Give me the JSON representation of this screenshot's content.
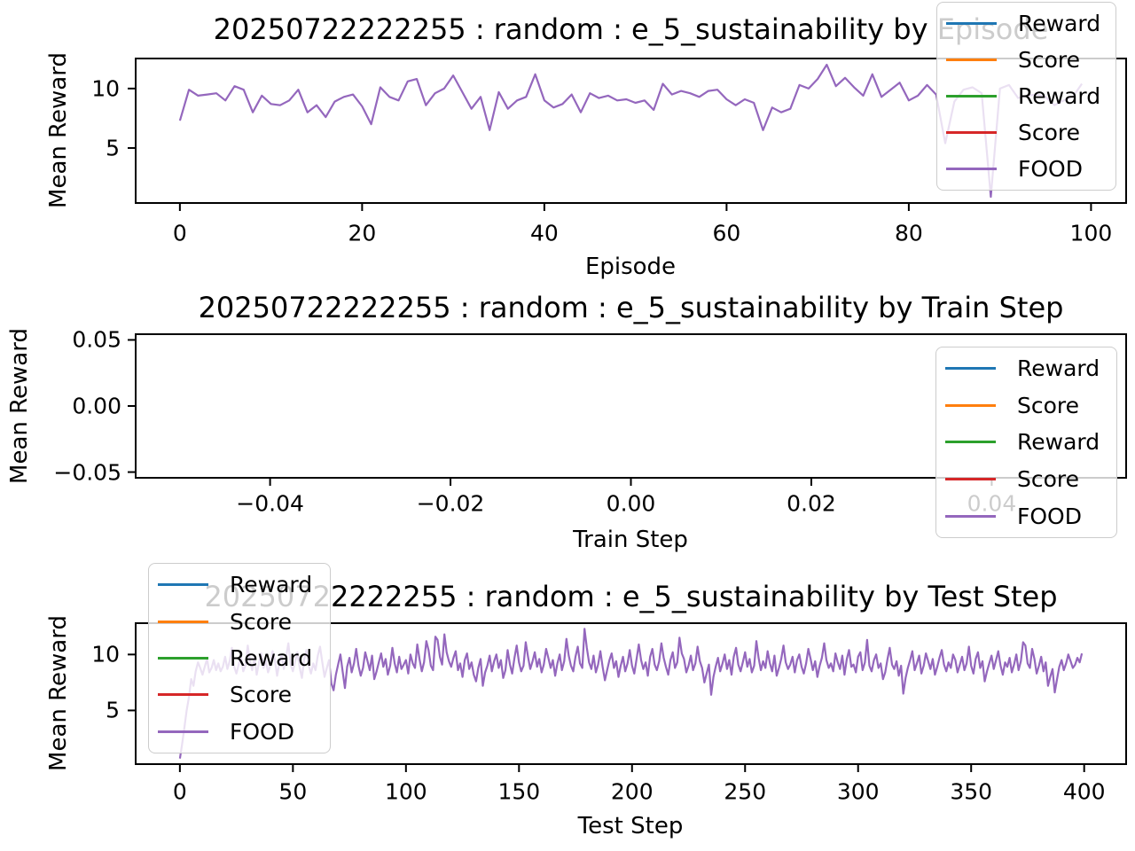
{
  "figure": {
    "background": "#ffffff"
  },
  "chart_data": [
    {
      "type": "line",
      "title": "20250722222255 : random : e_5_sustainability by Episode",
      "xlabel": "Episode",
      "ylabel": "Mean Reward",
      "xlim": [
        -4.95,
        103.95
      ],
      "ylim": [
        0.3,
        12.6
      ],
      "xticks": [
        0,
        20,
        40,
        60,
        80,
        100
      ],
      "xtick_labels": [
        "0",
        "20",
        "40",
        "60",
        "80",
        "100"
      ],
      "yticks": [
        10,
        5
      ],
      "ytick_labels": [
        "10",
        "5"
      ],
      "grid": false,
      "legend": {
        "position": "upper-right",
        "entries": [
          {
            "label": "Reward",
            "color": "#1f77b4"
          },
          {
            "label": "Score",
            "color": "#ff7f0e"
          },
          {
            "label": "Reward",
            "color": "#2ca02c"
          },
          {
            "label": "Score",
            "color": "#d62728"
          },
          {
            "label": "FOOD",
            "color": "#9467bd"
          }
        ]
      },
      "series": [
        {
          "name": "FOOD",
          "color": "#9467bd",
          "x_start": 0,
          "x_step": 1,
          "values": [
            7.3,
            9.9,
            9.4,
            9.5,
            9.6,
            9.0,
            10.2,
            9.9,
            8.0,
            9.4,
            8.7,
            8.6,
            9.0,
            9.9,
            8.0,
            8.6,
            7.6,
            8.9,
            9.3,
            9.5,
            8.5,
            7.0,
            10.1,
            9.3,
            9.0,
            10.6,
            10.8,
            8.6,
            9.6,
            10.0,
            11.1,
            9.7,
            8.3,
            9.3,
            6.5,
            9.7,
            8.3,
            9.0,
            9.3,
            11.2,
            9.0,
            8.4,
            8.7,
            9.5,
            8.0,
            9.6,
            9.2,
            9.4,
            9.0,
            9.1,
            8.8,
            9.0,
            8.2,
            10.4,
            9.5,
            9.8,
            9.6,
            9.3,
            9.8,
            9.9,
            9.1,
            8.6,
            9.1,
            8.8,
            6.5,
            8.4,
            8.0,
            8.3,
            10.3,
            10.0,
            10.8,
            12.0,
            10.2,
            10.9,
            10.1,
            9.4,
            11.2,
            9.3,
            9.9,
            10.5,
            9.0,
            9.4,
            10.3,
            9.5,
            5.4,
            8.9,
            9.9,
            10.1,
            9.6,
            0.9,
            10.0,
            10.3,
            9.2,
            9.4,
            9.5,
            9.3,
            8.6,
            9.0,
            9.3,
            10.4
          ]
        }
      ]
    },
    {
      "type": "line",
      "title": "20250722222255 : random : e_5_sustainability by Train Step",
      "xlabel": "Train Step",
      "ylabel": "Mean Reward",
      "xlim": [
        -0.055,
        0.055
      ],
      "ylim": [
        -0.055,
        0.055
      ],
      "xticks": [
        -0.04,
        -0.02,
        0.0,
        0.02,
        0.04
      ],
      "xtick_labels": [
        "−0.04",
        "−0.02",
        "0.00",
        "0.02",
        "0.04"
      ],
      "yticks": [
        0.05,
        0.0,
        -0.05
      ],
      "ytick_labels": [
        "0.05",
        "0.00",
        "−0.05"
      ],
      "grid": false,
      "legend": {
        "position": "center-right",
        "entries": [
          {
            "label": "Reward",
            "color": "#1f77b4"
          },
          {
            "label": "Score",
            "color": "#ff7f0e"
          },
          {
            "label": "Reward",
            "color": "#2ca02c"
          },
          {
            "label": "Score",
            "color": "#d62728"
          },
          {
            "label": "FOOD",
            "color": "#9467bd"
          }
        ]
      },
      "series": [
        {
          "name": "FOOD",
          "color": "#9467bd",
          "x_start": 0,
          "x_step": 1,
          "values": []
        }
      ]
    },
    {
      "type": "line",
      "title": "20250722222255 : random : e_5_sustainability by Test Step",
      "xlabel": "Test Step",
      "ylabel": "Mean Reward",
      "xlim": [
        -19.95,
        418.95
      ],
      "ylim": [
        0.12,
        12.88
      ],
      "xticks": [
        0,
        50,
        100,
        150,
        200,
        250,
        300,
        350,
        400
      ],
      "xtick_labels": [
        "0",
        "50",
        "100",
        "150",
        "200",
        "250",
        "300",
        "350",
        "400"
      ],
      "yticks": [
        10,
        5
      ],
      "ytick_labels": [
        "10",
        "5"
      ],
      "grid": false,
      "legend": {
        "position": "upper-left",
        "entries": [
          {
            "label": "Reward",
            "color": "#1f77b4"
          },
          {
            "label": "Score",
            "color": "#ff7f0e"
          },
          {
            "label": "Reward",
            "color": "#2ca02c"
          },
          {
            "label": "Score",
            "color": "#d62728"
          },
          {
            "label": "FOOD",
            "color": "#9467bd"
          }
        ]
      },
      "series": [
        {
          "name": "FOOD",
          "color": "#9467bd",
          "x_start": 0,
          "x_step": 1,
          "values": [
            0.7,
            2.0,
            3.5,
            5.0,
            6.2,
            7.8,
            7.2,
            8.5,
            9.3,
            8.8,
            8.2,
            8.9,
            9.6,
            8.4,
            8.8,
            9.5,
            8.6,
            9.2,
            8.5,
            8.9,
            9.8,
            8.7,
            9.4,
            10.6,
            8.9,
            8.3,
            9.1,
            9.9,
            8.5,
            9.0,
            10.8,
            9.4,
            8.6,
            9.7,
            8.2,
            9.3,
            10.1,
            8.8,
            9.5,
            8.4,
            9.0,
            10.3,
            9.6,
            8.1,
            9.2,
            10.0,
            8.7,
            9.8,
            11.0,
            9.1,
            8.5,
            9.4,
            10.2,
            8.8,
            7.9,
            9.6,
            10.4,
            9.0,
            8.3,
            9.2,
            8.6,
            9.9,
            10.7,
            9.3,
            8.0,
            8.8,
            9.5,
            7.4,
            6.8,
            8.2,
            9.1,
            10.0,
            8.5,
            7.0,
            8.9,
            9.7,
            8.4,
            9.2,
            10.5,
            9.0,
            8.1,
            8.8,
            10.2,
            9.4,
            8.6,
            9.9,
            7.8,
            8.5,
            9.3,
            10.1,
            8.9,
            9.6,
            8.2,
            9.0,
            10.6,
            9.2,
            8.4,
            9.8,
            8.7,
            9.1,
            9.5,
            8.3,
            10.0,
            9.2,
            8.8,
            10.9,
            9.6,
            8.5,
            9.3,
            11.2,
            10.4,
            9.0,
            8.6,
            11.6,
            11.3,
            9.8,
            9.1,
            11.8,
            10.2,
            9.4,
            8.9,
            9.7,
            10.3,
            8.6,
            9.2,
            8.0,
            9.5,
            10.1,
            8.7,
            9.3,
            8.2,
            7.6,
            8.8,
            9.6,
            7.2,
            8.4,
            9.0,
            9.9,
            8.5,
            9.4,
            10.0,
            8.8,
            9.5,
            7.9,
            8.6,
            10.4,
            9.1,
            8.3,
            9.7,
            10.8,
            9.3,
            8.5,
            9.0,
            11.1,
            9.8,
            8.7,
            9.4,
            10.2,
            8.9,
            9.6,
            8.4,
            9.1,
            10.5,
            9.7,
            8.8,
            9.5,
            8.1,
            9.2,
            10.0,
            8.6,
            9.4,
            11.4,
            9.9,
            9.0,
            8.5,
            9.8,
            10.7,
            9.2,
            8.8,
            12.3,
            10.6,
            9.3,
            8.7,
            9.9,
            8.4,
            9.1,
            10.3,
            8.9,
            7.7,
            8.6,
            9.5,
            10.1,
            8.8,
            9.4,
            8.0,
            9.0,
            9.8,
            8.5,
            9.2,
            10.4,
            9.0,
            8.3,
            9.6,
            10.9,
            9.5,
            8.7,
            9.3,
            8.1,
            9.8,
            10.5,
            9.1,
            8.6,
            9.4,
            11.0,
            9.7,
            8.9,
            8.2,
            9.5,
            10.2,
            8.8,
            9.3,
            11.5,
            10.1,
            9.6,
            8.4,
            9.0,
            9.9,
            8.6,
            9.2,
            10.7,
            9.4,
            8.8,
            7.5,
            8.3,
            9.1,
            6.4,
            8.0,
            8.9,
            9.7,
            8.5,
            9.2,
            10.0,
            8.7,
            9.5,
            8.2,
            9.8,
            10.6,
            9.1,
            8.5,
            9.3,
            10.2,
            8.9,
            9.6,
            8.4,
            9.0,
            11.2,
            9.7,
            8.6,
            9.4,
            8.8,
            10.3,
            9.2,
            8.5,
            9.9,
            8.1,
            8.8,
            9.6,
            10.8,
            9.3,
            8.7,
            9.1,
            9.8,
            8.4,
            9.5,
            10.0,
            8.9,
            8.3,
            9.2,
            10.5,
            9.6,
            8.6,
            9.4,
            8.0,
            9.0,
            9.7,
            11.0,
            9.5,
            8.8,
            9.2,
            8.5,
            10.1,
            9.3,
            8.7,
            9.9,
            8.2,
            9.6,
            10.4,
            8.9,
            9.1,
            8.4,
            9.8,
            10.2,
            8.6,
            9.3,
            11.3,
            9.0,
            8.5,
            9.5,
            10.0,
            8.8,
            9.2,
            7.8,
            8.4,
            9.6,
            10.6,
            9.1,
            8.7,
            9.4,
            8.1,
            9.0,
            6.5,
            7.9,
            8.8,
            9.5,
            10.3,
            8.6,
            9.2,
            9.9,
            8.3,
            9.0,
            10.1,
            9.4,
            8.7,
            9.6,
            8.2,
            8.9,
            9.7,
            10.4,
            9.1,
            8.5,
            9.3,
            8.8,
            10.0,
            9.5,
            8.4,
            9.1,
            9.8,
            8.6,
            9.2,
            10.7,
            9.0,
            8.3,
            9.6,
            10.2,
            8.8,
            9.4,
            7.6,
            8.5,
            9.2,
            9.9,
            8.7,
            9.5,
            10.3,
            9.0,
            8.2,
            9.3,
            8.9,
            9.7,
            8.4,
            9.1,
            10.0,
            8.6,
            9.4,
            11.1,
            10.8,
            9.2,
            8.8,
            10.5,
            9.6,
            8.3,
            9.0,
            9.8,
            8.5,
            9.3,
            7.2,
            8.0,
            8.7,
            6.6,
            7.8,
            8.9,
            9.5,
            8.6,
            9.2,
            10.0,
            9.4,
            8.8,
            9.1,
            9.7,
            9.3,
            10.1
          ]
        }
      ]
    }
  ]
}
